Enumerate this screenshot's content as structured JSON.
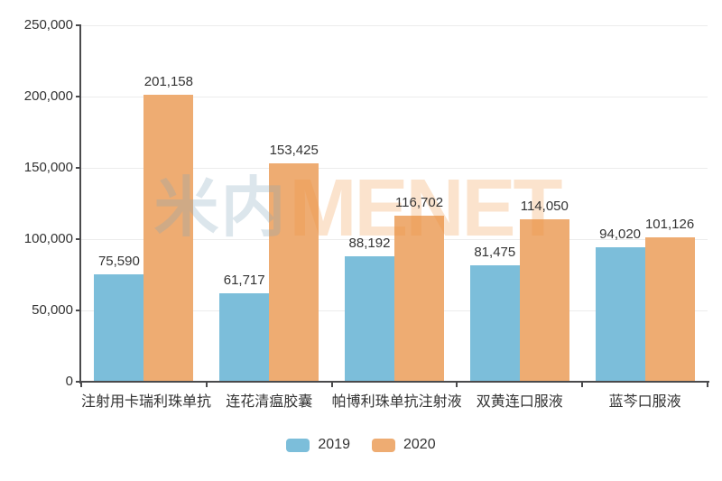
{
  "watermark": {
    "cn": "米内",
    "en": "MENET"
  },
  "colors": {
    "series_2019": "#7CBEDA",
    "series_2020": "#EEAC72",
    "axis": "#4a4a4c",
    "gridline": "#ececec",
    "text": "#333333"
  },
  "chart_data": {
    "type": "bar",
    "title": "",
    "xlabel": "",
    "ylabel": "",
    "categories": [
      "注射用卡瑞利珠单抗",
      "连花清瘟胶囊",
      "帕博利珠单抗注射液",
      "双黄连口服液",
      "蓝芩口服液"
    ],
    "series": [
      {
        "name": "2019",
        "color": "#7CBEDA",
        "values": [
          75590,
          61717,
          88192,
          81475,
          94020
        ]
      },
      {
        "name": "2020",
        "color": "#EEAC72",
        "values": [
          201158,
          153425,
          116702,
          114050,
          101126
        ]
      }
    ],
    "value_labels": [
      [
        "75,590",
        "61,717",
        "88,192",
        "81,475",
        "94,020"
      ],
      [
        "201,158",
        "153,425",
        "116,702",
        "114,050",
        "101,126"
      ]
    ],
    "ylim": [
      0,
      250000
    ],
    "yticks": [
      0,
      50000,
      100000,
      150000,
      200000,
      250000
    ],
    "ytick_labels": [
      "0",
      "50,000",
      "100,000",
      "150,000",
      "200,000",
      "250,000"
    ],
    "grid": true,
    "legend_position": "bottom"
  }
}
